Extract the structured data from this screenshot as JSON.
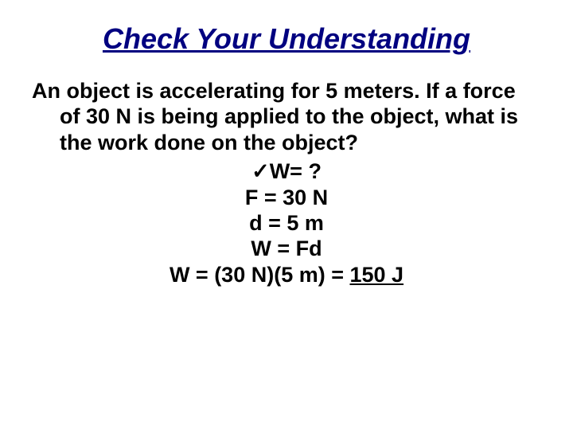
{
  "slide": {
    "title": "Check Your Understanding",
    "title_color": "#000080",
    "title_fontsize": 36,
    "background_color": "#ffffff",
    "question": "An object is accelerating for 5 meters.  If a force of 30 N is being applied to the object, what is the work done on the object?",
    "question_fontsize": 27,
    "solution": {
      "lines": [
        {
          "prefix": "✓",
          "text": "W= ?"
        },
        {
          "prefix": "",
          "text": "F = 30 N"
        },
        {
          "prefix": "",
          "text": "d = 5 m"
        },
        {
          "prefix": "",
          "text": "W = Fd"
        }
      ],
      "final_prefix": "W = (30 N)(5 m) = ",
      "final_answer": "150 J",
      "fontsize": 27
    }
  }
}
